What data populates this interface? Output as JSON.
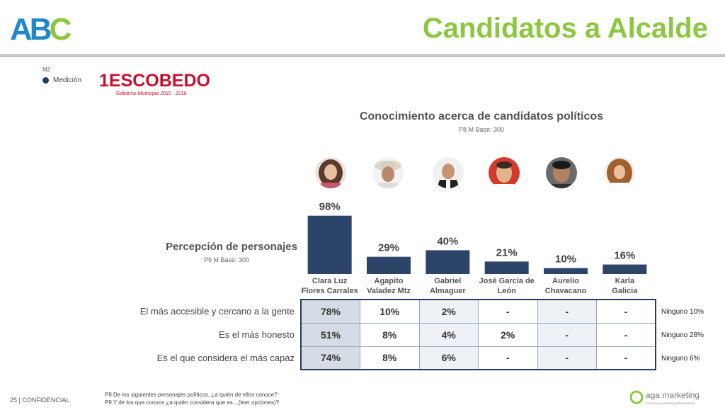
{
  "header": {
    "logo_text": "ABC",
    "title": "Candidatos a Alcalde",
    "code": "M2",
    "measure_label": "Medición",
    "client_logo": "1ESCOBEDO",
    "client_sub": "Gobierno Municipal 2015 - 2018"
  },
  "knowledge": {
    "title": "Conocimiento acerca de candidatos políticos",
    "base": "P8 M Base: 300"
  },
  "perception": {
    "title": "Percepción de personajes",
    "base": "P9 M Base: 300"
  },
  "colors": {
    "bar": "#2b4468",
    "title": "#8dc63f",
    "accent_light": "#d6dce5"
  },
  "chart_data": {
    "type": "bar",
    "categories": [
      "Clara Luz Flores Carrales",
      "Agapito Valadez Mtz",
      "Gabriel Almaguer",
      "José García de León",
      "Aurelio Chavacano",
      "Karla Galicia"
    ],
    "series": [
      {
        "values": [
          98,
          29,
          40,
          21,
          10,
          16
        ]
      }
    ],
    "labels": [
      "98%",
      "29%",
      "40%",
      "21%",
      "10%",
      "16%"
    ],
    "ylim": [
      0,
      100
    ]
  },
  "candidates": [
    {
      "line1": "Clara Luz",
      "line2": "Flores Carrales"
    },
    {
      "line1": "Agapito",
      "line2": "Valadez Mtz"
    },
    {
      "line1": "Gabriel",
      "line2": "Almaguer"
    },
    {
      "line1": "José García de",
      "line2": "León"
    },
    {
      "line1": "Aurelio",
      "line2": "Chavacano"
    },
    {
      "line1": "Karla",
      "line2": "Galicia"
    }
  ],
  "table": {
    "rows": [
      {
        "label": "El más accesible y cercano a la gente",
        "values": [
          "78%",
          "10%",
          "2%",
          "-",
          "-",
          "-"
        ],
        "none": "Ninguno 10%"
      },
      {
        "label": "Es el más honesto",
        "values": [
          "51%",
          "8%",
          "4%",
          "2%",
          "-",
          "-"
        ],
        "none": "Ninguno 28%"
      },
      {
        "label": "Es el que considera el más capaz",
        "values": [
          "74%",
          "8%",
          "6%",
          "-",
          "-",
          "-"
        ],
        "none": "Ninguno 6%"
      }
    ]
  },
  "footer": {
    "page": "25",
    "confidential": "| CONFIDENCIAL",
    "note1": "P8 De los siguientes personajes políticos, ¿a quién de ellos conoce?",
    "note2": "P9 Y de los que conoce ¿a quién considera que es…(leer opciones)?",
    "brand": "aga marketing",
    "brand_tag": "increasing marketing effectiveness..."
  }
}
